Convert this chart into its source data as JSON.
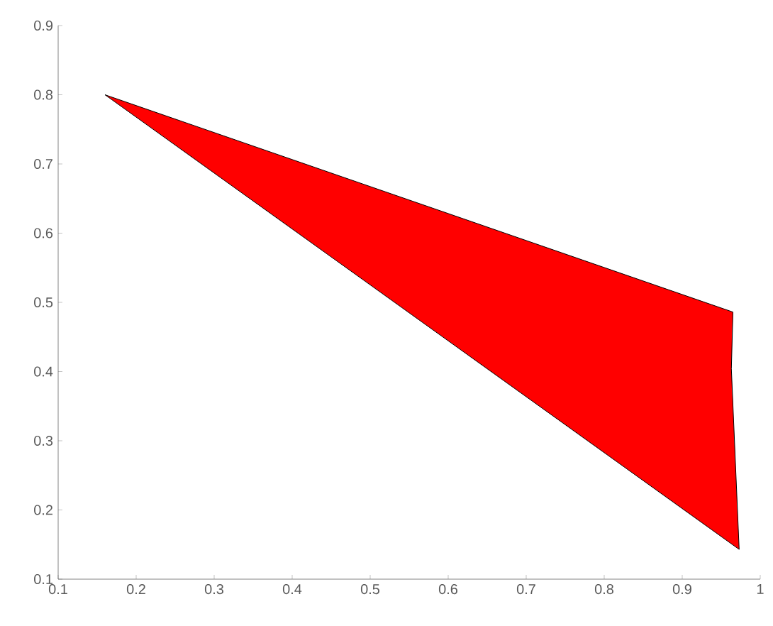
{
  "chart_data": {
    "type": "area",
    "series": [
      {
        "color": "#ff0000",
        "x": [
          0.16,
          0.965,
          0.963,
          0.973
        ],
        "values": [
          0.8,
          0.486,
          0.404,
          0.143
        ]
      }
    ],
    "xlim": [
      0.1,
      1
    ],
    "ylim": [
      0.1,
      0.9
    ],
    "xticks": [
      0.1,
      0.2,
      0.3,
      0.4,
      0.5,
      0.6,
      0.7,
      0.8,
      0.9,
      1
    ],
    "yticks": [
      0.1,
      0.2,
      0.3,
      0.4,
      0.5,
      0.6,
      0.7,
      0.8,
      0.9
    ]
  }
}
